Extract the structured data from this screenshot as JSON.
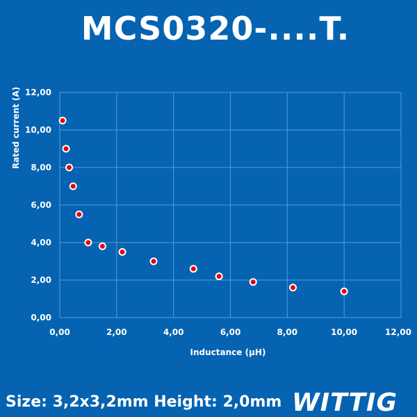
{
  "header": {
    "title": "MCS0320-....T."
  },
  "footer": {
    "text": "Size: 3,2x3,2mm Height: 2,0mm"
  },
  "logo": {
    "text": "WITTIG"
  },
  "colors": {
    "background": "#0563b1",
    "grid": "#5b9bd5",
    "marker_fill": "#e8000b",
    "marker_stroke": "#ffffff",
    "text": "#ffffff"
  },
  "chart_data": {
    "type": "scatter",
    "xlabel": "Inductance (µH)",
    "ylabel": "Rated current (A)",
    "xlim": [
      0,
      12
    ],
    "ylim": [
      0,
      12
    ],
    "xticks": [
      "0,00",
      "2,00",
      "4,00",
      "6,00",
      "8,00",
      "10,00",
      "12,00"
    ],
    "yticks": [
      "0,00",
      "2,00",
      "4,00",
      "6,00",
      "8,00",
      "10,00",
      "12,00"
    ],
    "grid": true,
    "series": [
      {
        "points": [
          {
            "x": 0.1,
            "y": 10.5
          },
          {
            "x": 0.22,
            "y": 9.0
          },
          {
            "x": 0.33,
            "y": 8.0
          },
          {
            "x": 0.47,
            "y": 7.0
          },
          {
            "x": 0.68,
            "y": 5.5
          },
          {
            "x": 1.0,
            "y": 4.0
          },
          {
            "x": 1.5,
            "y": 3.8
          },
          {
            "x": 2.2,
            "y": 3.5
          },
          {
            "x": 3.3,
            "y": 3.0
          },
          {
            "x": 4.7,
            "y": 2.6
          },
          {
            "x": 5.6,
            "y": 2.2
          },
          {
            "x": 6.8,
            "y": 1.9
          },
          {
            "x": 8.2,
            "y": 1.6
          },
          {
            "x": 10.0,
            "y": 1.4
          }
        ]
      }
    ]
  }
}
